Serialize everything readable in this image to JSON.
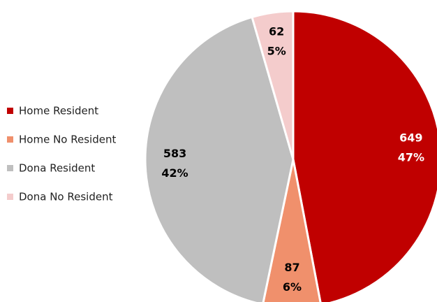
{
  "chart_data": {
    "type": "pie",
    "categories": [
      "Home Resident",
      "Home No Resident",
      "Dona Resident",
      "Dona No Resident"
    ],
    "values": [
      649,
      87,
      583,
      62
    ],
    "percent_labels": [
      "47%",
      "6%",
      "42%",
      "5%"
    ],
    "colors": [
      "#c00000",
      "#f0906c",
      "#bfbfbf",
      "#f4cccc"
    ],
    "label_colors": [
      "#ffffff",
      "#000000",
      "#000000",
      "#000000"
    ],
    "legend": "left"
  }
}
